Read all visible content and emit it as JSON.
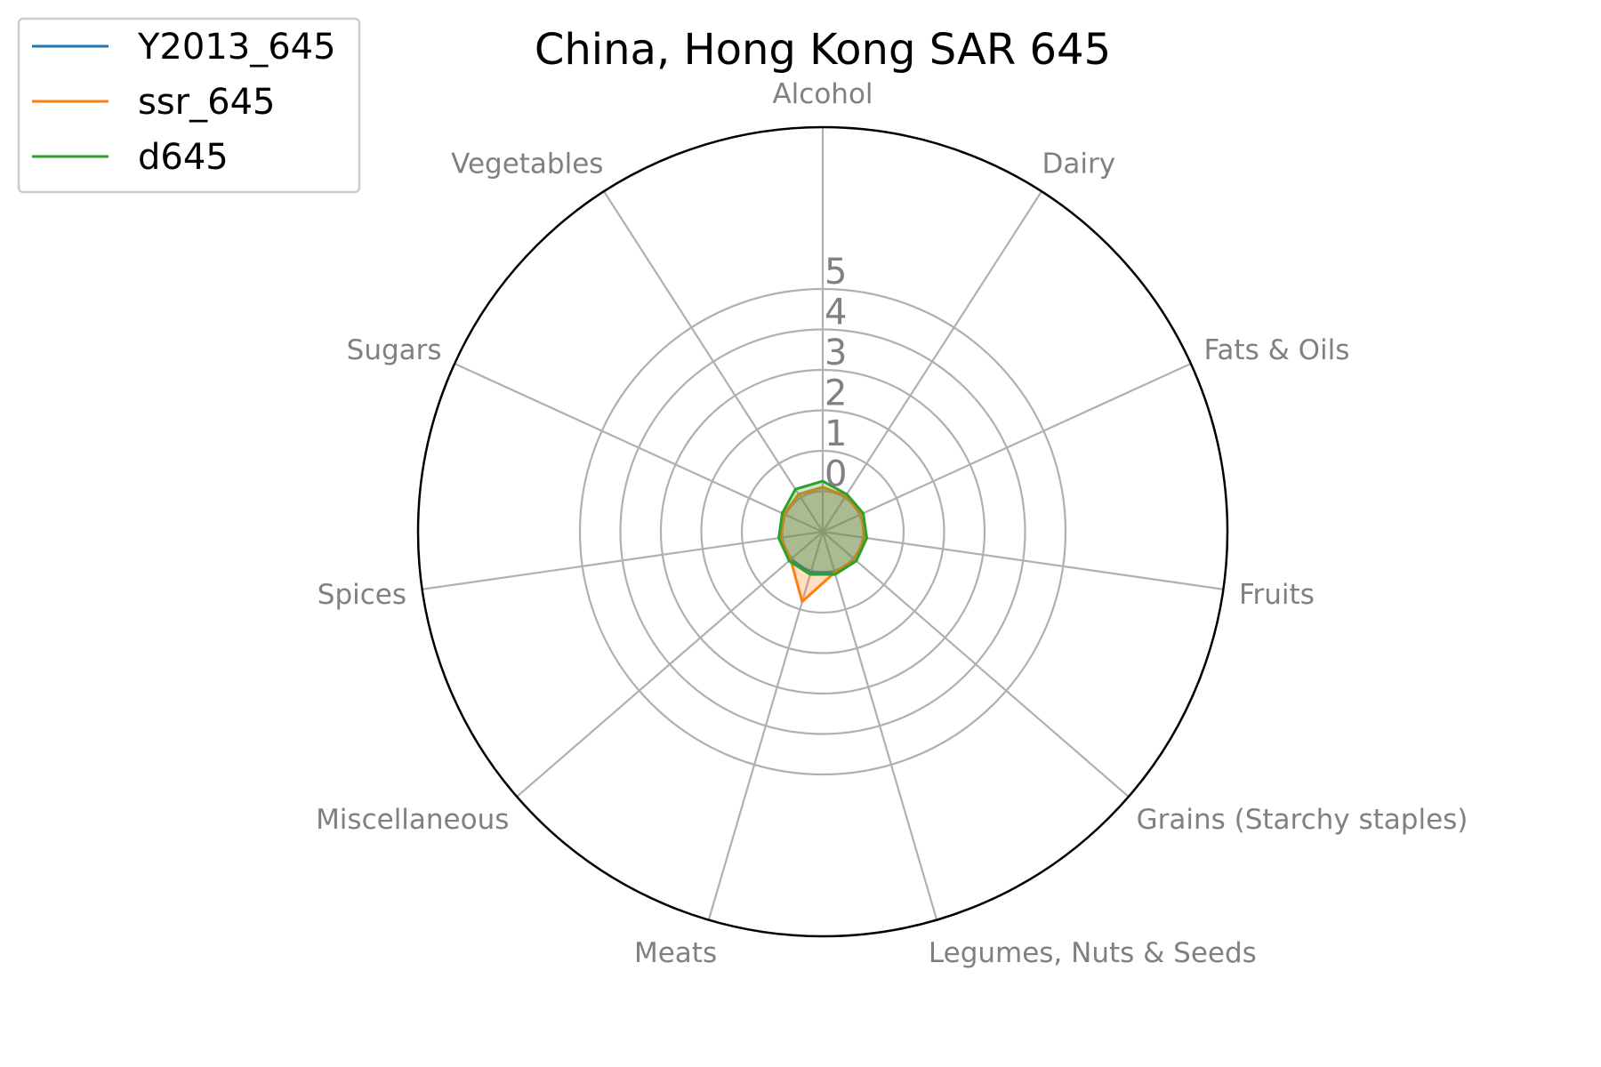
{
  "chart_data": {
    "type": "radar",
    "title": "China, Hong Kong SAR 645",
    "categories": [
      "Alcohol",
      "Dairy",
      "Fats & Oils",
      "Fruits",
      "Grains (Starchy staples)",
      "Legumes, Nuts & Seeds",
      "Meats",
      "Miscellaneous",
      "Spices",
      "Sugars",
      "Vegetables"
    ],
    "radial_ticks": [
      "0",
      "1",
      "2",
      "3",
      "4",
      "5"
    ],
    "rlim": [
      -1,
      9
    ],
    "grid": true,
    "legend_position": "top-left",
    "series": [
      {
        "name": "Y2013_645",
        "color": "#1f77b4",
        "values": [
          0.1,
          0.05,
          0.05,
          0.05,
          0.05,
          0.05,
          0.05,
          0.05,
          0.05,
          0.05,
          0.1
        ]
      },
      {
        "name": "ssr_645",
        "color": "#ff7f0e",
        "values": [
          0.1,
          0.05,
          0.05,
          0.05,
          0.05,
          0.05,
          0.8,
          0.05,
          0.05,
          0.05,
          0.1
        ]
      },
      {
        "name": "d645",
        "color": "#2ca02c",
        "values": [
          0.25,
          0.1,
          0.1,
          0.1,
          0.1,
          0.1,
          0.1,
          0.1,
          0.1,
          0.1,
          0.25
        ]
      }
    ]
  }
}
